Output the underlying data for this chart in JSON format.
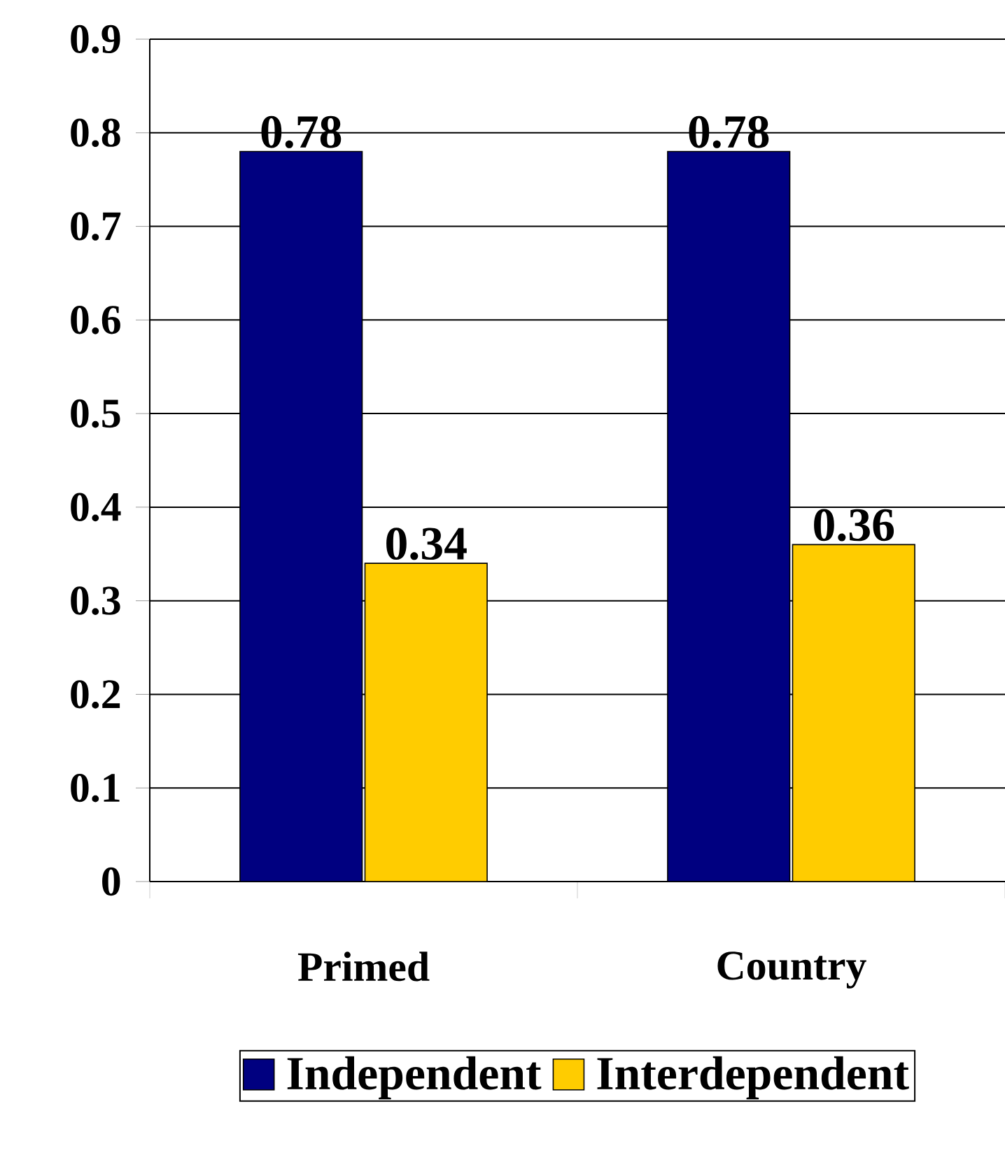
{
  "chart_data": {
    "type": "bar",
    "categories": [
      "Primed",
      "Country"
    ],
    "series": [
      {
        "name": "Independent",
        "color": "#000080",
        "values": [
          0.78,
          0.78
        ]
      },
      {
        "name": "Interdependent",
        "color": "#ffcc00",
        "values": [
          0.34,
          0.36
        ]
      }
    ],
    "ylim": [
      0,
      0.9
    ],
    "yticks": [
      0,
      0.1,
      0.2,
      0.3,
      0.4,
      0.5,
      0.6,
      0.7,
      0.8,
      0.9
    ],
    "grid": "y",
    "legend": "bottom",
    "data_labels": true
  }
}
